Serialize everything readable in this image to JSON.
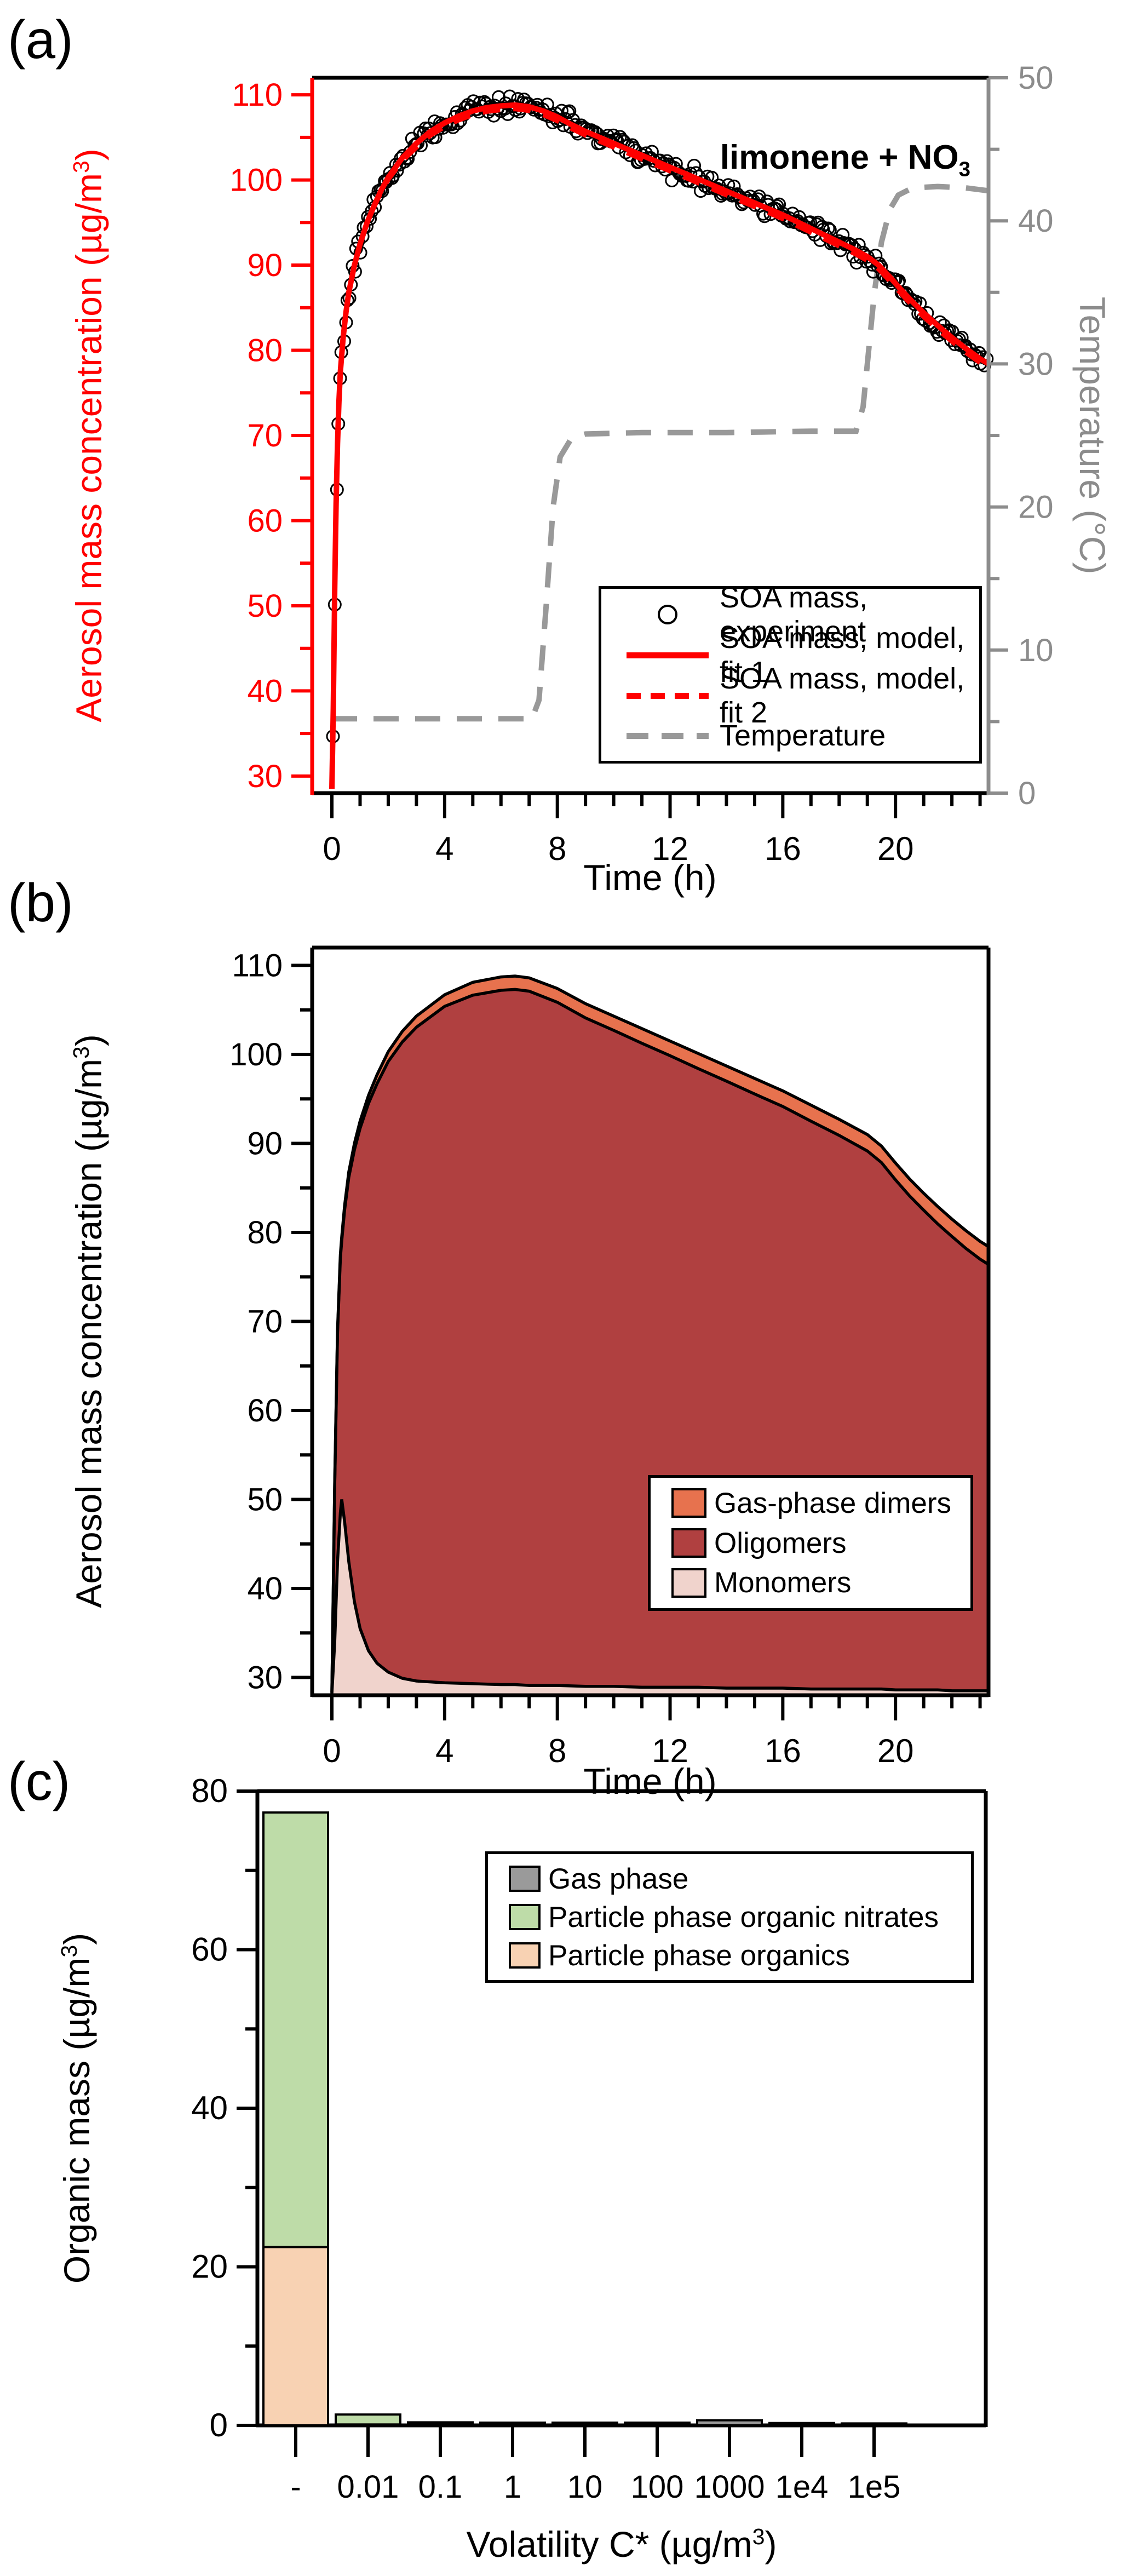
{
  "panels": {
    "a": {
      "letter": "(a)",
      "annotation": {
        "pre": "limonene + NO",
        "sub": "3"
      },
      "y_left_title": {
        "pre": "Aerosol mass concentration (µg/m",
        "sup": "3",
        "post": ")"
      },
      "y_right_title": {
        "pre": "Temperature (°C)",
        "sup": "",
        "post": ""
      },
      "x_title": {
        "pre": "Time (h)",
        "sup": "",
        "post": ""
      },
      "colors": {
        "axis_left": "#FF0000",
        "axis_right": "#8C8C8C",
        "frame": "#000000",
        "fit_line": "#FF0000",
        "temperature_line": "#999999",
        "experiment_marker": "#000000"
      },
      "legend": [
        {
          "symbol": "circle-open",
          "label": "SOA mass, experiment"
        },
        {
          "symbol": "line-solid-red",
          "label": "SOA mass, model, fit 1"
        },
        {
          "symbol": "line-dashed-red",
          "label": "SOA mass, model, fit 2"
        },
        {
          "symbol": "line-dashed-gray",
          "label": "Temperature"
        }
      ]
    },
    "b": {
      "letter": "(b)",
      "y_left_title": {
        "pre": "Aerosol mass concentration (µg/m",
        "sup": "3",
        "post": ")"
      },
      "x_title": {
        "pre": "Time (h)",
        "sup": "",
        "post": ""
      },
      "colors": {
        "axis": "#000000",
        "dimers": "#E7724E",
        "oligomers": "#B04040",
        "monomers": "#F0D3CC"
      },
      "legend": [
        {
          "symbol": "swatch",
          "color": "#E7724E",
          "label": "Gas-phase dimers"
        },
        {
          "symbol": "swatch",
          "color": "#B04040",
          "label": "Oligomers"
        },
        {
          "symbol": "swatch",
          "color": "#F0D3CC",
          "label": "Monomers"
        }
      ]
    },
    "c": {
      "letter": "(c)",
      "y_left_title": {
        "pre": "Organic mass (µg/m",
        "sup": "3",
        "post": ")"
      },
      "x_title": {
        "pre": "Volatility C* (µg/m",
        "sup": "3",
        "post": ")"
      },
      "colors": {
        "axis": "#000000",
        "gas": "#9A9A9A",
        "nitrates": "#BEDCA8",
        "organics": "#F8D2B3"
      },
      "legend": [
        {
          "symbol": "swatch",
          "color": "#9A9A9A",
          "label": "Gas phase"
        },
        {
          "symbol": "swatch",
          "color": "#BEDCA8",
          "label": "Particle phase organic nitrates"
        },
        {
          "symbol": "swatch",
          "color": "#F8D2B3",
          "label": "Particle phase organics"
        }
      ]
    }
  },
  "chart_data": [
    {
      "id": "a",
      "type": "line+scatter",
      "title": "limonene + NO3",
      "xlabel": "Time (h)",
      "ylabel_left": "Aerosol mass concentration (ug/m3)",
      "ylabel_right": "Temperature (C)",
      "xlim": [
        -0.7,
        23.3
      ],
      "ylim_left": [
        28,
        112
      ],
      "ylim_right": [
        0,
        50
      ],
      "x_major_ticks": [
        0,
        4,
        8,
        12,
        16,
        20
      ],
      "x_tick_labels": [
        "0",
        "4",
        "8",
        "12",
        "16",
        "20"
      ],
      "x_minor_step": 1,
      "y_left_ticks": [
        30,
        40,
        50,
        60,
        70,
        80,
        90,
        100,
        110
      ],
      "y_left_tick_labels": [
        "30",
        "40",
        "50",
        "60",
        "70",
        "80",
        "90",
        "100",
        "110"
      ],
      "y_left_minor_ticks": [
        35,
        45,
        55,
        65,
        75,
        85,
        95,
        105
      ],
      "y_right_ticks": [
        0,
        10,
        20,
        30,
        40,
        50
      ],
      "y_right_tick_labels": [
        "0",
        "10",
        "20",
        "30",
        "40",
        "50"
      ],
      "y_right_minor_ticks": [
        5,
        15,
        25,
        35,
        45
      ],
      "series": [
        {
          "name": "SOA mass, model, fit 1",
          "style": "solid-red-line",
          "points": [
            [
              0,
              28.5
            ],
            [
              0.05,
              38
            ],
            [
              0.1,
              52
            ],
            [
              0.15,
              62
            ],
            [
              0.2,
              69
            ],
            [
              0.25,
              74
            ],
            [
              0.3,
              77.5
            ],
            [
              0.4,
              81.5
            ],
            [
              0.5,
              84.5
            ],
            [
              0.6,
              86.8
            ],
            [
              0.8,
              90
            ],
            [
              1,
              92.5
            ],
            [
              1.25,
              95
            ],
            [
              1.5,
              97
            ],
            [
              1.75,
              98.8
            ],
            [
              2,
              100.3
            ],
            [
              2.5,
              102.6
            ],
            [
              3,
              104.3
            ],
            [
              3.5,
              105.7
            ],
            [
              4,
              106.7
            ],
            [
              4.5,
              107.5
            ],
            [
              5,
              108.1
            ],
            [
              5.5,
              108.5
            ],
            [
              6,
              108.7
            ],
            [
              6.5,
              108.8
            ],
            [
              7,
              108.6
            ],
            [
              7.5,
              108.1
            ],
            [
              8,
              107.4
            ],
            [
              8.5,
              106.5
            ],
            [
              9,
              105.7
            ],
            [
              9.5,
              105
            ],
            [
              10,
              104.3
            ],
            [
              10.5,
              103.6
            ],
            [
              11,
              102.9
            ],
            [
              11.5,
              102.2
            ],
            [
              12,
              101.5
            ],
            [
              12.5,
              100.8
            ],
            [
              13,
              100.1
            ],
            [
              13.5,
              99.4
            ],
            [
              14,
              98.7
            ],
            [
              14.5,
              98
            ],
            [
              15,
              97.3
            ],
            [
              15.5,
              96.6
            ],
            [
              16,
              95.9
            ],
            [
              16.5,
              95.1
            ],
            [
              17,
              94.3
            ],
            [
              17.5,
              93.5
            ],
            [
              18,
              92.7
            ],
            [
              18.5,
              91.9
            ],
            [
              19,
              91
            ],
            [
              19.4,
              90
            ],
            [
              19.8,
              88.6
            ],
            [
              20.2,
              87.1
            ],
            [
              20.6,
              85.7
            ],
            [
              21,
              84.4
            ],
            [
              21.5,
              82.9
            ],
            [
              22,
              81.5
            ],
            [
              22.5,
              80.2
            ],
            [
              23,
              79
            ],
            [
              23.3,
              78.4
            ]
          ]
        },
        {
          "name": "SOA mass, model, fit 2",
          "style": "dashed-red-line",
          "offset_from_fit_1": -0.45
        },
        {
          "name": "SOA mass, experiment",
          "style": "open-circles",
          "derived_from": "SOA mass, model, fit 1",
          "n_points": 355,
          "noise_sd": 0.6
        },
        {
          "name": "Temperature",
          "style": "dashed-gray-line",
          "axis": "right",
          "points": [
            [
              0,
              5.2
            ],
            [
              7.1,
              5.2
            ],
            [
              7.35,
              6.5
            ],
            [
              7.6,
              13
            ],
            [
              7.85,
              20
            ],
            [
              8.1,
              23.5
            ],
            [
              8.5,
              24.8
            ],
            [
              9,
              25.1
            ],
            [
              11,
              25.2
            ],
            [
              14,
              25.2
            ],
            [
              17,
              25.3
            ],
            [
              18.6,
              25.3
            ],
            [
              18.85,
              27
            ],
            [
              19.05,
              31
            ],
            [
              19.25,
              35
            ],
            [
              19.5,
              38.5
            ],
            [
              19.8,
              40.8
            ],
            [
              20.1,
              41.8
            ],
            [
              20.6,
              42.3
            ],
            [
              21.5,
              42.4
            ],
            [
              22.5,
              42.3
            ],
            [
              23.3,
              42.1
            ]
          ]
        }
      ]
    },
    {
      "id": "b",
      "type": "stacked-area",
      "xlabel": "Time (h)",
      "ylabel": "Aerosol mass concentration (ug/m3)",
      "xlim": [
        -0.7,
        23.3
      ],
      "ylim": [
        28,
        112
      ],
      "baseline": 28,
      "x_major_ticks": [
        0,
        4,
        8,
        12,
        16,
        20
      ],
      "x_tick_labels": [
        "0",
        "4",
        "8",
        "12",
        "16",
        "20"
      ],
      "x_minor_step": 1,
      "y_ticks": [
        30,
        40,
        50,
        60,
        70,
        80,
        90,
        100,
        110
      ],
      "y_tick_labels": [
        "30",
        "40",
        "50",
        "60",
        "70",
        "80",
        "90",
        "100",
        "110"
      ],
      "y_minor_ticks": [
        35,
        45,
        55,
        65,
        75,
        85,
        95,
        105
      ],
      "x": [
        0,
        0.1,
        0.2,
        0.3,
        0.35,
        0.45,
        0.6,
        0.8,
        1,
        1.3,
        1.6,
        2,
        2.5,
        3,
        4,
        5,
        6,
        6.5,
        7,
        8,
        9,
        10,
        11,
        12,
        13,
        14,
        15,
        16,
        17,
        18,
        19,
        19.5,
        20,
        20.5,
        21,
        21.5,
        22,
        22.5,
        23,
        23.3
      ],
      "monomer_top": [
        28.2,
        34,
        43,
        48.5,
        50,
        47.5,
        43,
        38.5,
        35.5,
        33,
        31.6,
        30.6,
        29.9,
        29.6,
        29.4,
        29.3,
        29.2,
        29.2,
        29.1,
        29.1,
        29,
        29,
        28.9,
        28.9,
        28.9,
        28.8,
        28.8,
        28.8,
        28.7,
        28.7,
        28.7,
        28.7,
        28.6,
        28.6,
        28.6,
        28.6,
        28.5,
        28.5,
        28.5,
        28.5
      ],
      "oligomer_top": [
        28.3,
        51.8,
        68.7,
        77.1,
        79.05,
        82.5,
        86.2,
        89.3,
        91.7,
        94.5,
        96.7,
        99.2,
        101.4,
        103.05,
        105.4,
        106.65,
        107.2,
        107.3,
        107.1,
        105.85,
        104.1,
        102.7,
        101.25,
        99.85,
        98.4,
        97,
        95.55,
        94.15,
        92.5,
        90.9,
        89.15,
        87.85,
        85.9,
        84.1,
        82.5,
        80.95,
        79.55,
        78.2,
        77,
        76.4
      ],
      "total": [
        28.3,
        52,
        69,
        77.5,
        79.5,
        83,
        86.8,
        90,
        92.5,
        95.4,
        97.7,
        100.3,
        102.6,
        104.3,
        106.7,
        108.1,
        108.7,
        108.8,
        108.6,
        107.4,
        105.7,
        104.3,
        102.9,
        101.5,
        100.1,
        98.7,
        97.3,
        95.9,
        94.3,
        92.7,
        91,
        89.7,
        87.8,
        86,
        84.4,
        82.9,
        81.5,
        80.2,
        79,
        78.4
      ],
      "layers_bottom_to_top": [
        "Monomers",
        "Oligomers",
        "Gas-phase dimers"
      ]
    },
    {
      "id": "c",
      "type": "stacked-bar",
      "xlabel": "Volatility C* (ug/m3)",
      "ylabel": "Organic mass (ug/m3)",
      "ylim": [
        0,
        80
      ],
      "y_ticks": [
        0,
        20,
        40,
        60,
        80
      ],
      "y_tick_labels": [
        "0",
        "20",
        "40",
        "60",
        "80"
      ],
      "y_minor_ticks": [
        10,
        30,
        50,
        70
      ],
      "categories": [
        "-",
        "0.01",
        "0.1",
        "1",
        "10",
        "100",
        "1000",
        "1e4",
        "1e5"
      ],
      "series": [
        {
          "name": "Particle phase organics",
          "color": "#F8D2B3",
          "values": [
            22.5,
            0.12,
            0.08,
            0.08,
            0.08,
            0.08,
            0,
            0.04,
            0.02
          ]
        },
        {
          "name": "Particle phase organic nitrates",
          "color": "#BEDCA8",
          "values": [
            54.8,
            1.25,
            0.1,
            0.06,
            0.06,
            0.06,
            0.02,
            0.05,
            0.02
          ]
        },
        {
          "name": "Gas phase",
          "color": "#9A9A9A",
          "values": [
            0,
            0,
            0.04,
            0.04,
            0.04,
            0.1,
            0.62,
            0.12,
            0.04
          ]
        }
      ]
    }
  ]
}
